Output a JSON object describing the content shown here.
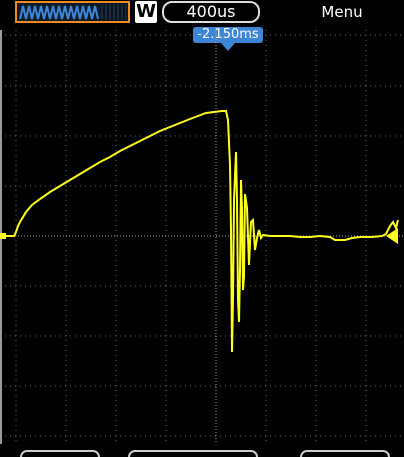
{
  "toolbar": {
    "waveform_icon": "waveform-thumbnail-icon",
    "mode_label": "W",
    "timebase": "400us",
    "menu_label": "Menu"
  },
  "trigger": {
    "position_label": "-2.150ms"
  },
  "colors": {
    "trace": "#ffff1e",
    "grid": "#8c8c8c",
    "accent": "#f08a20",
    "trigger_marker": "#3d86d6"
  }
}
